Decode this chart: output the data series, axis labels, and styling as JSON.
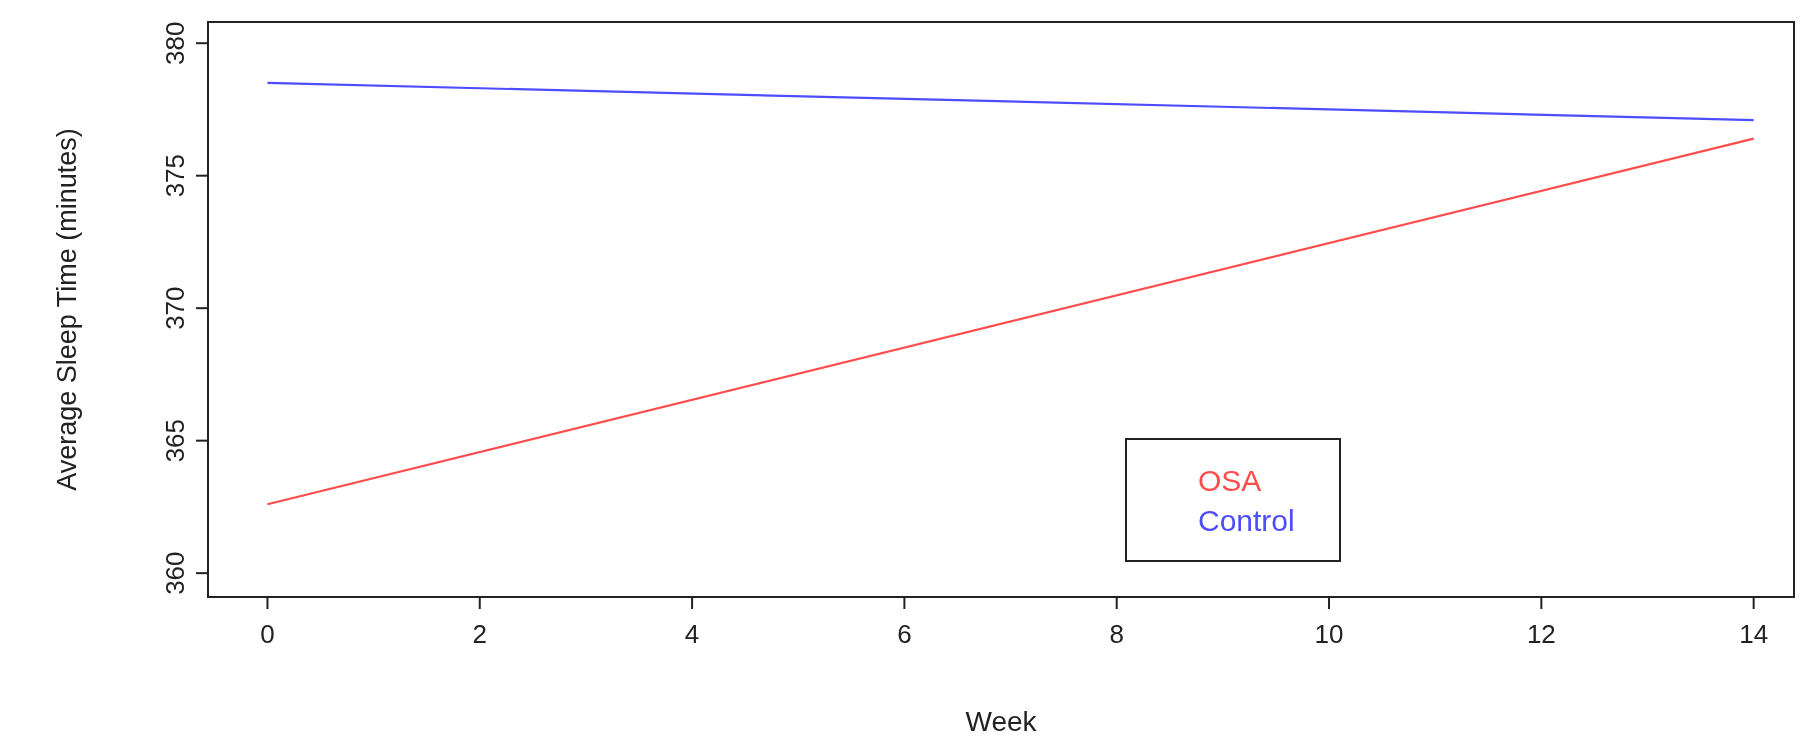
{
  "chart_data": {
    "type": "line",
    "xlabel": "Week",
    "ylabel": "Average Sleep Time (minutes)",
    "x": [
      0,
      14
    ],
    "series": [
      {
        "name": "OSA",
        "color": "#ff4d4d",
        "values": [
          362.6,
          376.4
        ]
      },
      {
        "name": "Control",
        "color": "#4d4dff",
        "values": [
          378.5,
          377.1
        ]
      }
    ],
    "xlim": [
      -0.56,
      14.38
    ],
    "xticks": [
      0,
      2,
      4,
      6,
      8,
      10,
      12,
      14
    ],
    "ylim": [
      359.1,
      380.8
    ],
    "yticks": [
      360,
      365,
      370,
      375,
      380
    ],
    "legend": "bottom",
    "grid": false,
    "marker": "none",
    "line_style": "solid"
  }
}
